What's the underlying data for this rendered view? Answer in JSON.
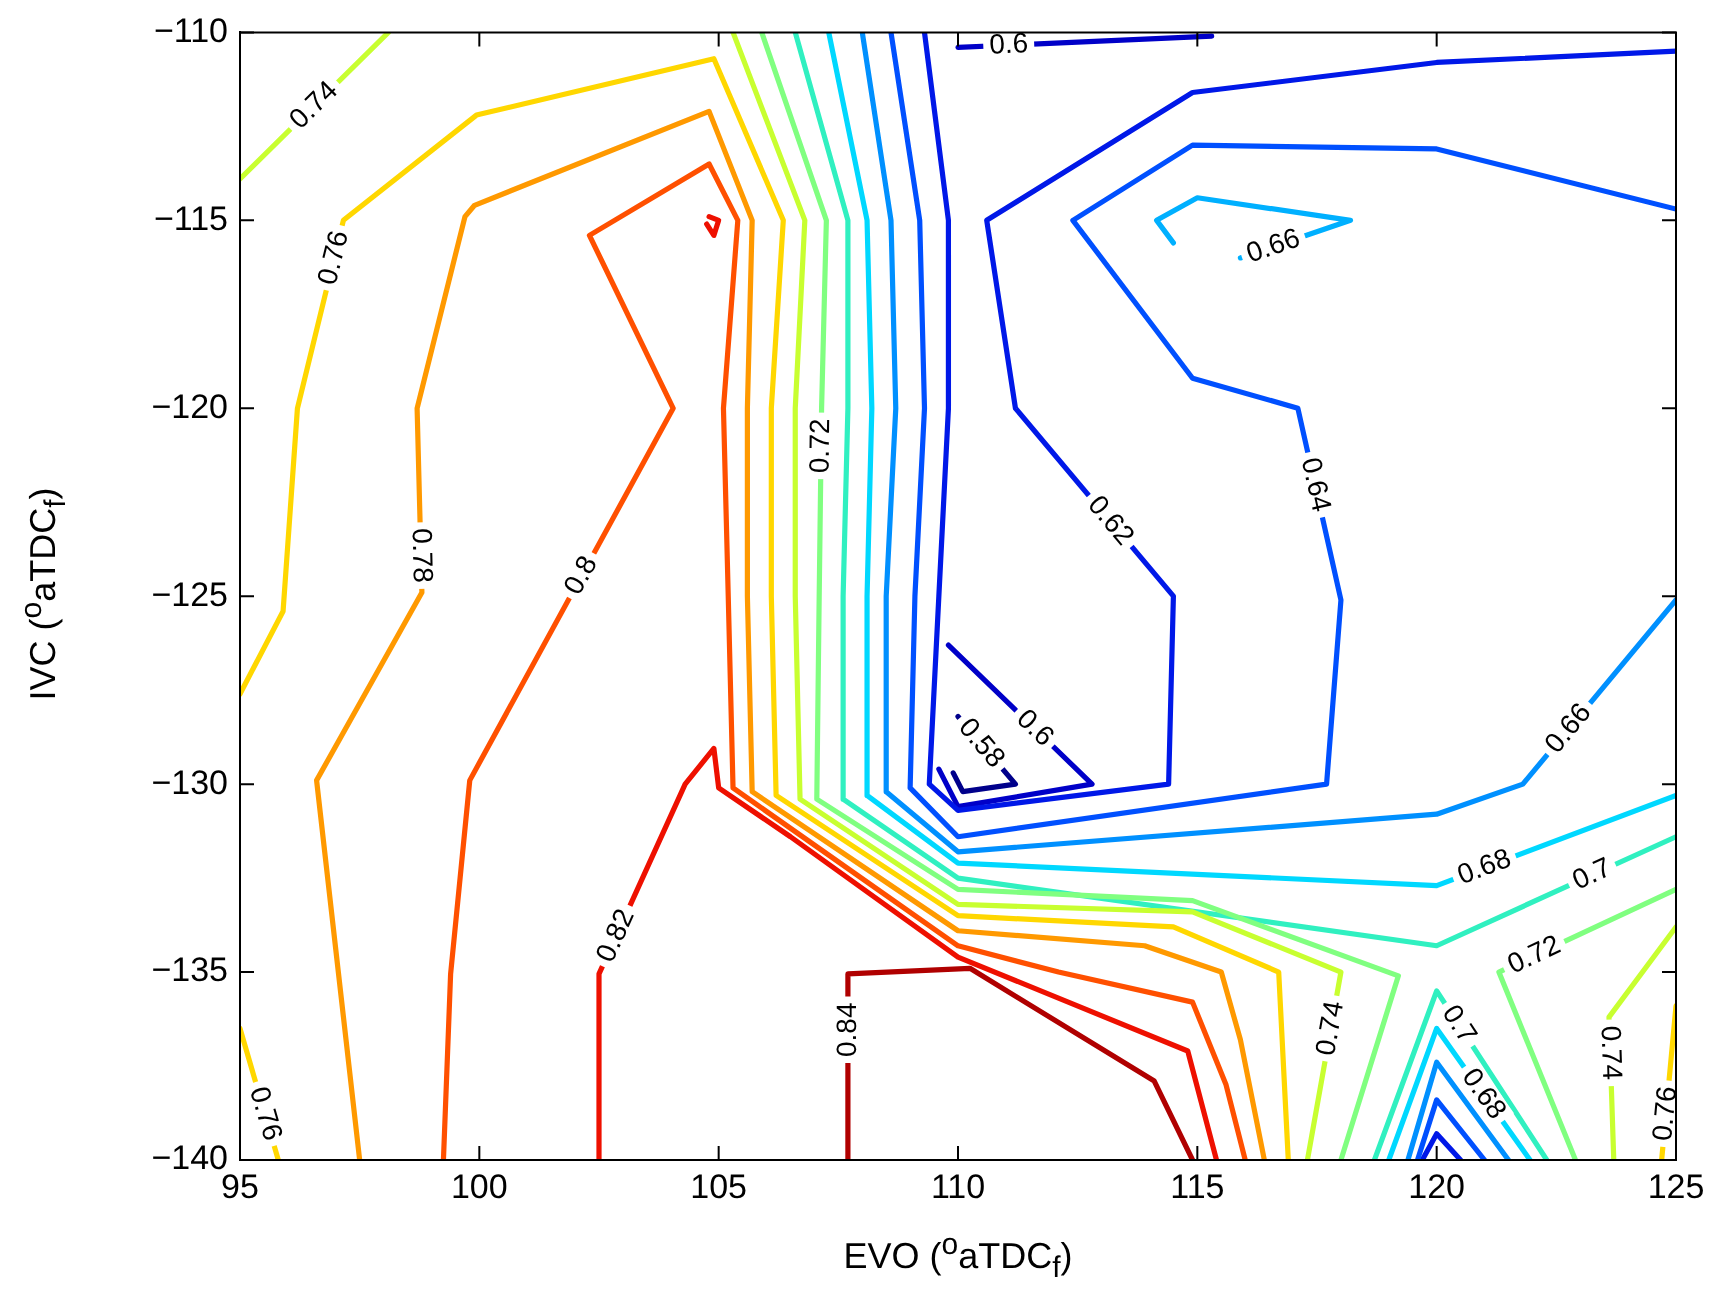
{
  "chart_data": {
    "type": "line",
    "xlabel": "EVO ($^{o}$aTDC$_{f}$)",
    "ylabel": "IVC ($^{o}$aTDC$_{f}$)",
    "xlim": [
      95,
      125
    ],
    "ylim": [
      -140,
      -110
    ],
    "xticks": [
      95,
      100,
      105,
      110,
      115,
      120,
      125
    ],
    "yticks": [
      {
        "value": -140,
        "label": "−140"
      },
      {
        "value": -135,
        "label": "−135"
      },
      {
        "value": -130,
        "label": "−130"
      },
      {
        "value": -125,
        "label": "−125"
      },
      {
        "value": -120,
        "label": "−120"
      },
      {
        "value": -115,
        "label": "−115"
      },
      {
        "value": -110,
        "label": "−110"
      }
    ],
    "series": [
      {
        "name": "0.84",
        "color": "#b00000",
        "x": [
          107.7,
          107.7,
          110.25,
          114.1,
          114.9
        ],
        "values": [
          -140,
          -135.05,
          -134.9,
          -137.9,
          -140
        ]
      },
      {
        "name": "0.82",
        "color": "#ee1000",
        "x": [
          102.5,
          102.5,
          104.3,
          104.9,
          105,
          106.5,
          110,
          114.8,
          115.4
        ],
        "values": [
          -140,
          -135.05,
          -130,
          -129.05,
          -130.1,
          -131.4,
          -134.6,
          -137.1,
          -140
        ]
      },
      {
        "color": "#ee1000",
        "x": [
          104.8,
          105,
          104.9,
          104.75
        ],
        "values": [
          -114.9,
          -115,
          -115.4,
          -115.1
        ]
      },
      {
        "name": "0.8",
        "color": "#ff5000",
        "x": [
          99.25,
          99.4,
          99.8,
          104.05,
          102.3,
          104.8,
          105.4,
          105.1,
          105.2,
          105.3,
          110,
          112.1,
          114.9,
          115.6,
          116
        ],
        "values": [
          -140,
          -135.05,
          -129.9,
          -120,
          -115.4,
          -113.5,
          -115,
          -120,
          -125,
          -130.1,
          -134.3,
          -135,
          -135.8,
          -138,
          -140
        ]
      },
      {
        "name": "0.78",
        "color": "#ff9900",
        "x": [
          97.5,
          96.6,
          98.8,
          98.7,
          99.7,
          99.9,
          104.8,
          105.7,
          105.6,
          105.6,
          105.7,
          110,
          113.9,
          115.5,
          115.9,
          116.4
        ],
        "values": [
          -140,
          -129.9,
          -124.9,
          -120,
          -114.9,
          -114.6,
          -112.1,
          -115,
          -120,
          -125,
          -130.2,
          -133.9,
          -134.3,
          -135,
          -136.8,
          -140
        ]
      },
      {
        "name": "0.76",
        "color": "#ffd700",
        "x": [
          95,
          95.9,
          96.2,
          97.16,
          99.94,
          104.9,
          106.35,
          106.1,
          106.1,
          106.2,
          110,
          114.5,
          116.7,
          116.9
        ],
        "values": [
          -127.6,
          -125.4,
          -120,
          -115,
          -112.2,
          -110.7,
          -115,
          -120,
          -125,
          -130.3,
          -133.5,
          -133.8,
          -135,
          -140
        ]
      },
      {
        "name": "0.76",
        "color": "#ffd700",
        "x": [
          95,
          95.8
        ],
        "values": [
          -136.5,
          -140
        ]
      },
      {
        "name": "0.76",
        "color": "#ffd700",
        "x": [
          125,
          124.7
        ],
        "values": [
          -135.9,
          -140
        ]
      },
      {
        "name": "0.74",
        "color": "#c8ff30",
        "x": [
          105.3,
          106.8,
          106.6,
          106.6,
          106.7,
          110,
          114.9,
          118,
          117.3
        ],
        "values": [
          -110,
          -115,
          -120,
          -125,
          -130.4,
          -133.2,
          -133.4,
          -135,
          -140
        ]
      },
      {
        "name": "0.74",
        "color": "#c8ff30",
        "x": [
          95,
          98.1
        ],
        "values": [
          -113.9,
          -110
        ]
      },
      {
        "name": "0.74",
        "color": "#c8ff30",
        "x": [
          125,
          123.6,
          123.7
        ],
        "values": [
          -133.8,
          -136.2,
          -140
        ]
      },
      {
        "name": "0.72",
        "color": "#80ff80",
        "x": [
          105.9,
          107.25,
          107.15,
          107.1,
          107.05,
          110,
          114.9,
          119.2,
          118
        ],
        "values": [
          -110,
          -115,
          -120,
          -125,
          -130.4,
          -132.8,
          -133.1,
          -135.1,
          -140
        ]
      },
      {
        "name": "0.72",
        "color": "#80ff80",
        "x": [
          125,
          121.3,
          122.9
        ],
        "values": [
          -132.8,
          -135,
          -140
        ]
      },
      {
        "name": "0.7",
        "color": "#30f0c0",
        "x": [
          106.6,
          107.7,
          107.7,
          107.6,
          107.6,
          110,
          120,
          125
        ],
        "values": [
          -110,
          -115,
          -120,
          -125,
          -130.4,
          -132.5,
          -134.3,
          -131.4
        ]
      },
      {
        "name": "0.7",
        "color": "#30f0c0",
        "x": [
          118.7,
          120,
          122.3
        ],
        "values": [
          -140,
          -135.5,
          -140
        ]
      },
      {
        "name": "0.68",
        "color": "#00d8ff",
        "x": [
          107.3,
          108.1,
          108.2,
          108.1,
          108.1,
          110,
          120,
          125
        ],
        "values": [
          -110,
          -115,
          -120,
          -125,
          -130.3,
          -132.1,
          -132.7,
          -130.3
        ]
      },
      {
        "name": "0.68",
        "color": "#00d8ff",
        "x": [
          119,
          120,
          121.95
        ],
        "values": [
          -140,
          -136.5,
          -140
        ]
      },
      {
        "name": "0.66",
        "color": "#0090ff",
        "x": [
          108,
          108.6,
          108.7,
          108.5,
          108.5,
          110,
          120,
          121.8,
          125
        ],
        "values": [
          -110,
          -115,
          -120,
          -125,
          -130.2,
          -131.8,
          -130.8,
          -130,
          -125.1
        ]
      },
      {
        "color": "#0090ff",
        "x": [
          119.4,
          120,
          121.5
        ],
        "values": [
          -140,
          -137.4,
          -140
        ]
      },
      {
        "name": "0.66",
        "color": "#00b0ff",
        "x": [
          114.5,
          114.15,
          115,
          118.2,
          115.9
        ],
        "values": [
          -115.6,
          -115,
          -114.4,
          -115,
          -116
        ]
      },
      {
        "name": "0.64",
        "color": "#0050ff",
        "x": [
          108.6,
          109.2,
          109.3,
          109.1,
          109,
          110,
          117.7,
          118,
          117.1,
          114.9,
          112.4,
          114.9,
          120,
          125
        ],
        "values": [
          -110,
          -115,
          -120,
          -125,
          -130.1,
          -131.4,
          -130,
          -125.1,
          -120,
          -119.2,
          -115,
          -113,
          -113.1,
          -114.7
        ]
      },
      {
        "color": "#0050ff",
        "x": [
          119.6,
          120,
          121
        ],
        "values": [
          -140,
          -138.4,
          -140
        ]
      },
      {
        "name": "0.62",
        "color": "#0018e8",
        "x": [
          109.3,
          109.8,
          109.8,
          109.6,
          109.4,
          110,
          114.4,
          114.5,
          111.2,
          110.6,
          114.9,
          120,
          125
        ],
        "values": [
          -110,
          -115,
          -120,
          -125,
          -130,
          -130.7,
          -130,
          -125,
          -120,
          -115,
          -111.6,
          -110.8,
          -110.5
        ]
      },
      {
        "color": "#0018e8",
        "x": [
          119.7,
          120,
          120.5
        ],
        "values": [
          -140,
          -139.3,
          -140
        ]
      },
      {
        "name": "0.6",
        "color": "#0000c8",
        "x": [
          109.8,
          112.8,
          110,
          109.6
        ],
        "values": [
          -126.3,
          -130,
          -130.6,
          -129.6
        ]
      },
      {
        "name": "0.6",
        "color": "#0000c8",
        "x": [
          110,
          115.3
        ],
        "values": [
          -110.4,
          -110.1
        ]
      },
      {
        "name": "0.58",
        "color": "#00008b",
        "x": [
          110,
          111.2,
          110.1,
          109.9
        ],
        "values": [
          -128.2,
          -130,
          -130.2,
          -129.7
        ]
      }
    ]
  }
}
